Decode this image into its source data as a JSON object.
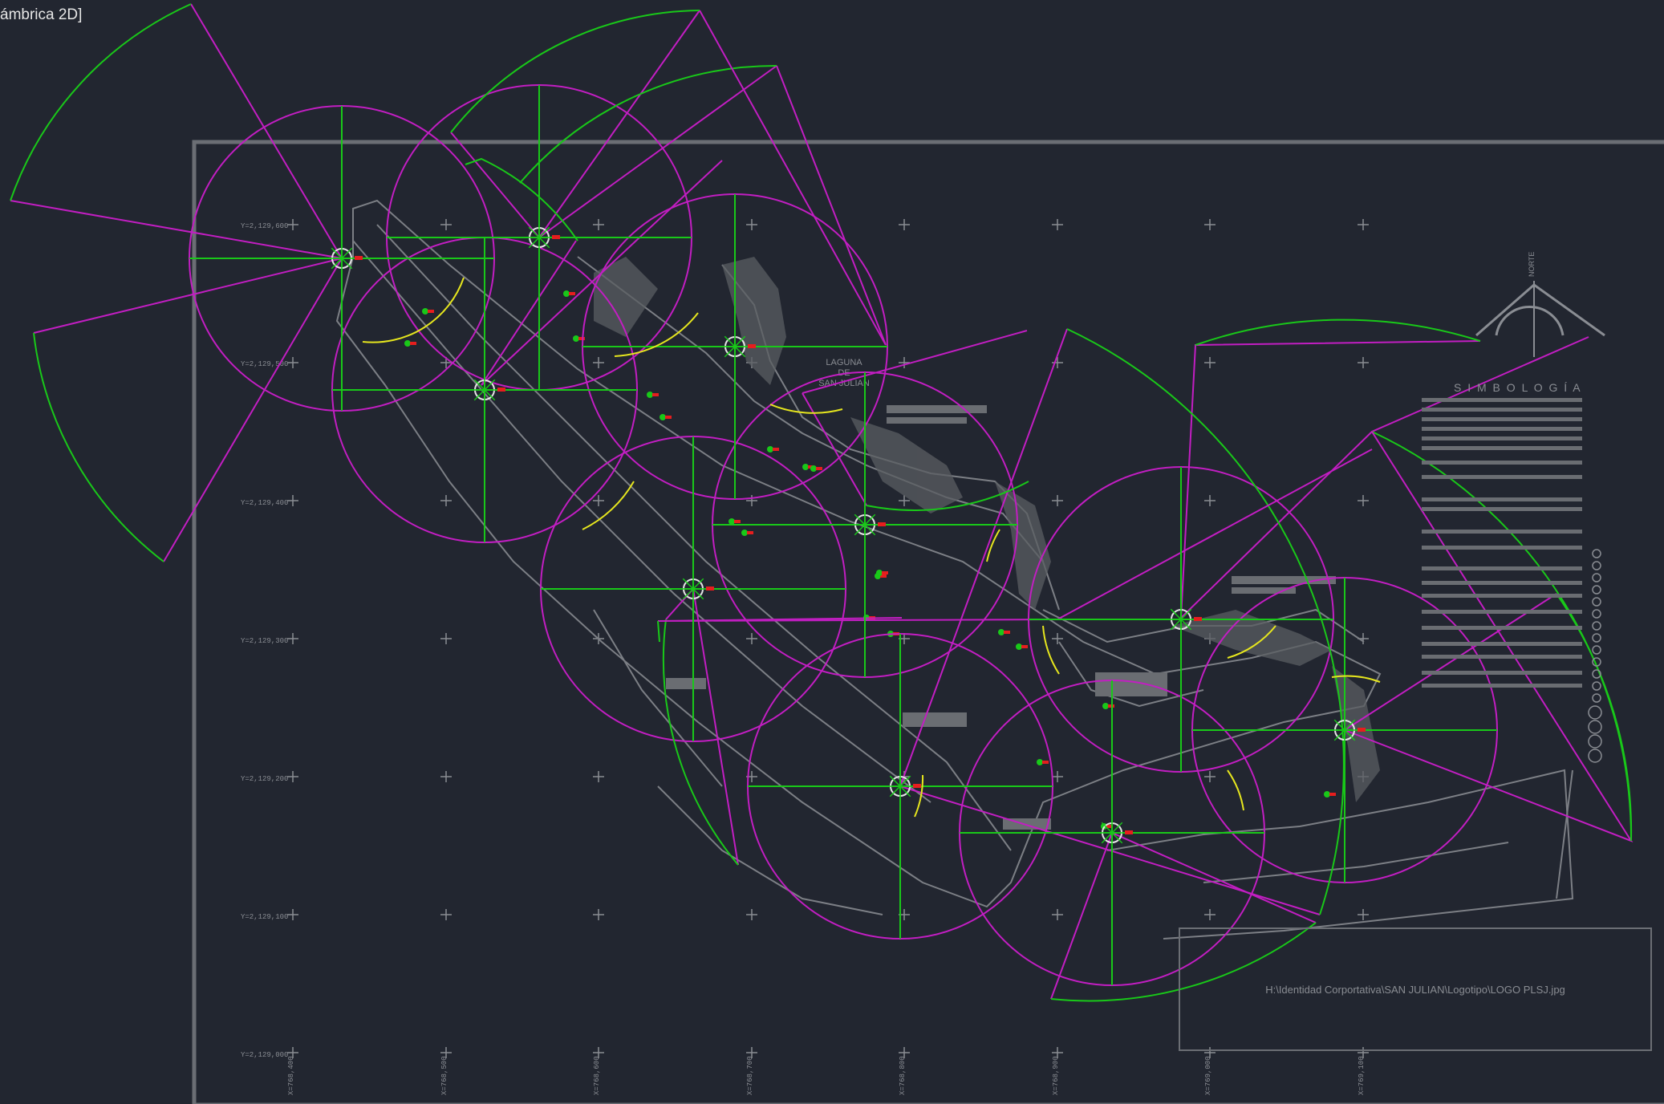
{
  "view": {
    "label": "ámbrica 2D]"
  },
  "drawing": {
    "lagoon_label_line1": "LAGUNA",
    "lagoon_label_line2": "DE",
    "lagoon_label_line3": "SAN JULIAN",
    "north_label": "NORTE",
    "legend_title": "S I M B O L O G Í A",
    "logo_path": "H:\\Identidad Corportativa\\SAN JULIAN\\Logotipo\\LOGO PLSJ.jpg",
    "y_coords": [
      "Y=2,129,600",
      "Y=2,129,500",
      "Y=2,129,400",
      "Y=2,129,300",
      "Y=2,129,200",
      "Y=2,129,100",
      "Y=2,129,000"
    ],
    "x_coords": [
      "X=768,400",
      "X=768,500",
      "X=768,600",
      "X=768,700",
      "X=768,800",
      "X=768,900",
      "X=769,000",
      "X=769,100"
    ],
    "legend_rows": [
      "DIRECTOR DE PROYECTO",
      "DIRECCION DE OBRA",
      "TUBERIA DE SALIDA DE AGUA POTABLE",
      "REGISTRO SANITARIO",
      "REGISTRO PLUVIAL",
      "DRENAJE",
      "CENTRO DE BOMBAS CONTRA INCENDIOS",
      "PLANTA ELECTRICA DE EMERGENCIA",
      "SUPERFICIE",
      "AREA TOTAL",
      "AREA CONSTRUIDA",
      "AREA VERDE",
      "AREA DE CIRCULACION"
    ]
  },
  "colors": {
    "background": "#222630",
    "frame": "#6b6e74",
    "magenta": "#c21ec2",
    "green": "#19c819",
    "yellow": "#e6e61e",
    "red": "#e61e1e",
    "gray": "#7c7f85",
    "text": "#e6e6e6"
  }
}
